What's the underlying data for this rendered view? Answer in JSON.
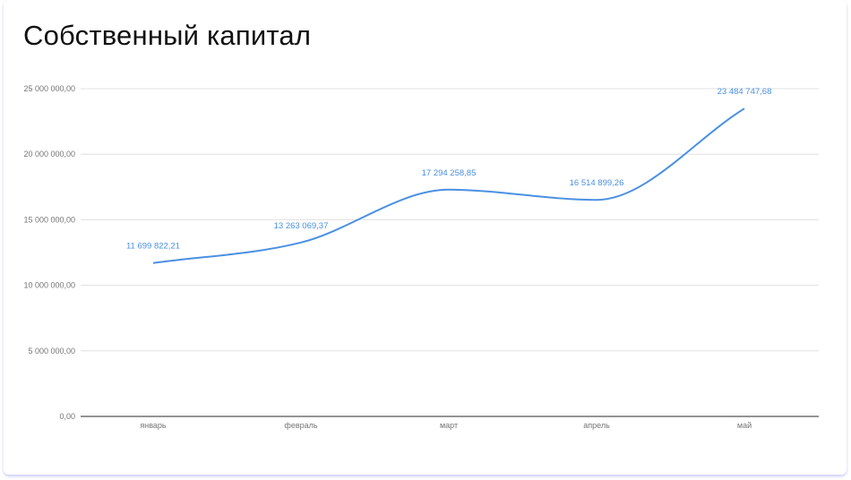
{
  "chart_data": {
    "type": "line",
    "title": "Собственный капитал",
    "categories": [
      "январь",
      "февраль",
      "март",
      "апрель",
      "май"
    ],
    "series": [
      {
        "values": [
          11699822.21,
          13263069.37,
          17294258.85,
          16514899.26,
          23484747.68
        ],
        "data_labels": [
          "11 699 822,21",
          "13 263 069,37",
          "17 294 258,85",
          "16 514 899,26",
          "23 484 747,68"
        ]
      }
    ],
    "y_ticks": [
      {
        "value": 0,
        "label": "0,00"
      },
      {
        "value": 5000000,
        "label": "5 000 000,00"
      },
      {
        "value": 10000000,
        "label": "10 000 000,00"
      },
      {
        "value": 15000000,
        "label": "15 000 000,00"
      },
      {
        "value": 20000000,
        "label": "20 000 000,00"
      },
      {
        "value": 25000000,
        "label": "25 000 000,00"
      }
    ],
    "ylim": [
      0,
      25000000
    ],
    "smooth": true,
    "grid": true,
    "legend": "none",
    "line_color": "#4a90e2",
    "grid_color": "#e0e0e0",
    "axis_color": "#555555"
  }
}
